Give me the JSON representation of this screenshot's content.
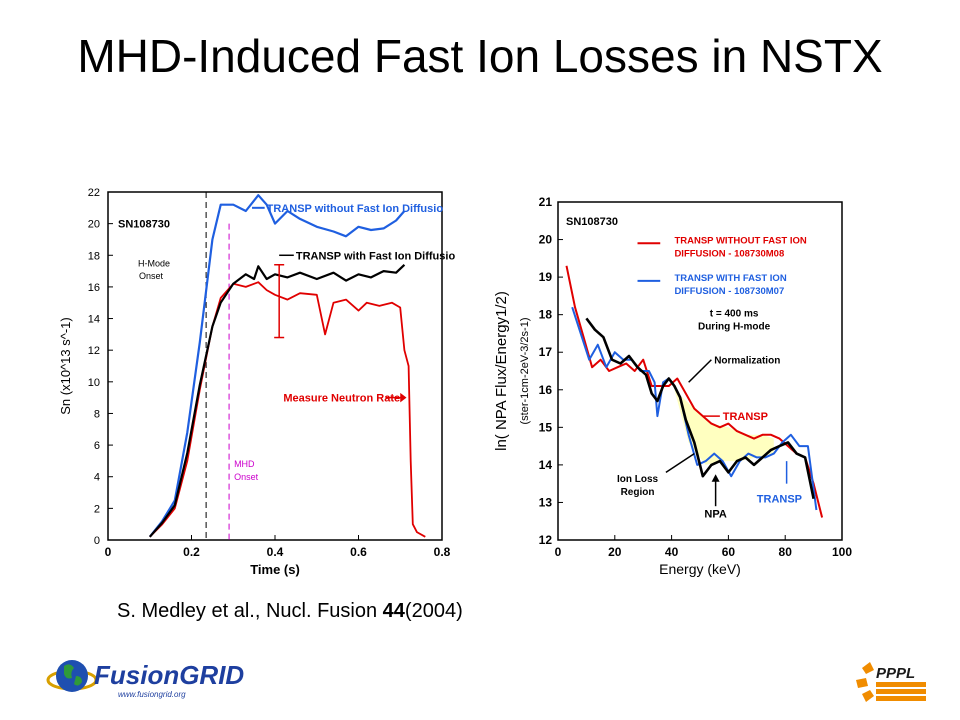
{
  "slide": {
    "title": "MHD-Induced Fast Ion Losses in NSTX",
    "citation": {
      "prefix": "S. Medley et al., Nucl. Fusion ",
      "volume": "44",
      "suffix": "(2004)"
    }
  },
  "logos": {
    "fusiongrid": {
      "name": "FusionGRID",
      "url_text": "www.fusiongrid.org"
    },
    "pppl": {
      "name": "PPPL"
    }
  },
  "colors": {
    "black": "#000000",
    "blue": "#1f5fe0",
    "red": "#e00000",
    "magenta": "#cc00cc",
    "yellow": "#ffffc0"
  },
  "chart_data": [
    {
      "type": "line",
      "shot_label": "SN108730",
      "xlabel": "Time (s)",
      "ylabel": "Sn (x10^13 s^-1)",
      "xlim": [
        0,
        0.8
      ],
      "ylim": [
        0,
        22
      ],
      "xticks": [
        "0",
        "0.2",
        "0.4",
        "0.6",
        "0.8"
      ],
      "yticks": [
        "0",
        "2",
        "4",
        "6",
        "8",
        "10",
        "12",
        "14",
        "16",
        "18",
        "20",
        "22"
      ],
      "annotations": {
        "h_mode": [
          "H-Mode",
          "Onset"
        ],
        "mhd": [
          "MHD",
          "Onset"
        ],
        "h_mode_time": 0.235,
        "mhd_time": 0.29
      },
      "series": [
        {
          "name": "TRANSP without Fast Ion Diffusio",
          "color": "blue",
          "x": [
            0.1,
            0.13,
            0.16,
            0.19,
            0.22,
            0.25,
            0.27,
            0.3,
            0.33,
            0.36,
            0.38,
            0.4,
            0.43,
            0.46,
            0.5,
            0.54,
            0.57,
            0.6,
            0.63,
            0.66,
            0.69,
            0.71
          ],
          "y": [
            0.2,
            1.2,
            2.5,
            6.8,
            12.5,
            19.0,
            21.2,
            21.2,
            20.8,
            21.8,
            21.2,
            20.0,
            20.8,
            20.3,
            19.8,
            19.5,
            19.2,
            19.8,
            19.6,
            19.7,
            20.2,
            20.8
          ]
        },
        {
          "name": "TRANSP with Fast Ion Diffusio",
          "color": "black",
          "x": [
            0.1,
            0.13,
            0.16,
            0.19,
            0.22,
            0.25,
            0.27,
            0.3,
            0.33,
            0.35,
            0.36,
            0.38,
            0.4,
            0.43,
            0.46,
            0.5,
            0.54,
            0.57,
            0.6,
            0.63,
            0.66,
            0.69,
            0.71
          ],
          "y": [
            0.2,
            1.1,
            2.2,
            5.5,
            9.8,
            13.5,
            15.0,
            16.2,
            16.8,
            16.5,
            17.3,
            16.5,
            16.8,
            16.6,
            16.9,
            16.5,
            16.9,
            16.4,
            16.8,
            16.6,
            17.0,
            16.9,
            17.4
          ]
        },
        {
          "name": "Measure Neutron Rate",
          "color": "red",
          "x": [
            0.1,
            0.13,
            0.16,
            0.19,
            0.22,
            0.25,
            0.27,
            0.3,
            0.33,
            0.36,
            0.38,
            0.4,
            0.43,
            0.46,
            0.5,
            0.52,
            0.54,
            0.57,
            0.6,
            0.62,
            0.65,
            0.68,
            0.7,
            0.71,
            0.72,
            0.725,
            0.73,
            0.74,
            0.76
          ],
          "y": [
            0.2,
            1.0,
            2.0,
            5.0,
            9.5,
            13.5,
            15.3,
            16.2,
            16.0,
            16.3,
            15.8,
            15.5,
            15.2,
            15.6,
            15.5,
            13.0,
            15.0,
            15.2,
            14.5,
            15.0,
            14.8,
            15.0,
            14.7,
            12.0,
            11.0,
            5.0,
            1.0,
            0.5,
            0.2
          ]
        }
      ]
    },
    {
      "type": "line",
      "shot_label": "SN108730",
      "xlabel": "Energy (keV)",
      "ylabel": "ln( NPA Flux/Energy1/2)",
      "ylabel_units": "(ster-1cm-2eV-3/2s-1)",
      "xlim": [
        0,
        100
      ],
      "ylim": [
        12,
        21
      ],
      "xticks": [
        "0",
        "20",
        "40",
        "60",
        "80",
        "100"
      ],
      "yticks": [
        "12",
        "13",
        "14",
        "15",
        "16",
        "17",
        "18",
        "19",
        "20",
        "21"
      ],
      "annotations": {
        "time": [
          "t = 400 ms",
          "During H-mode"
        ],
        "normalization": "Normalization",
        "transp_red": "TRANSP",
        "transp_blue": "TRANSP",
        "ion_loss": [
          "Ion Loss",
          "Region"
        ],
        "npa": "NPA"
      },
      "series": [
        {
          "name": "TRANSP WITHOUT FAST ION DIFFUSION - 108730M08",
          "color": "red",
          "x": [
            3,
            6,
            9,
            12,
            15,
            18,
            21,
            24,
            27,
            30,
            33,
            36,
            39,
            42,
            45,
            48,
            51,
            54,
            57,
            60,
            63,
            66,
            69,
            72,
            75,
            78,
            81,
            84,
            87,
            90,
            93
          ],
          "y": [
            19.3,
            18.2,
            17.4,
            16.6,
            16.8,
            16.5,
            16.6,
            16.7,
            16.5,
            16.8,
            16.1,
            16.1,
            16.1,
            16.3,
            15.9,
            15.5,
            15.3,
            15.1,
            15.0,
            15.1,
            14.9,
            14.8,
            14.7,
            14.8,
            14.8,
            14.7,
            14.5,
            14.3,
            14.2,
            13.5,
            12.6
          ]
        },
        {
          "name": "TRANSP WITH FAST ION DIFFUSION - 108730M07",
          "color": "blue",
          "x": [
            5,
            8,
            11,
            14,
            17,
            20,
            23,
            26,
            29,
            32,
            34,
            35,
            37,
            39,
            41,
            43,
            46,
            49,
            52,
            55,
            58,
            61,
            64,
            67,
            70,
            73,
            76,
            79,
            82,
            85,
            88,
            91
          ],
          "y": [
            18.2,
            17.5,
            16.8,
            17.2,
            16.6,
            17.0,
            16.8,
            16.8,
            16.5,
            16.5,
            16.2,
            15.3,
            16.2,
            16.3,
            16.1,
            15.8,
            14.8,
            14.0,
            14.1,
            14.3,
            14.1,
            13.7,
            14.1,
            14.3,
            14.2,
            14.2,
            14.3,
            14.6,
            14.8,
            14.5,
            14.5,
            12.8
          ]
        },
        {
          "name": "NPA",
          "color": "black",
          "x": [
            10,
            13,
            16,
            19,
            22,
            25,
            28,
            31,
            33,
            35,
            37,
            39,
            41,
            43,
            45,
            48,
            51,
            54,
            57,
            60,
            63,
            66,
            69,
            72,
            75,
            78,
            81,
            84,
            87,
            90
          ],
          "y": [
            17.9,
            17.6,
            17.4,
            16.8,
            16.7,
            16.9,
            16.6,
            16.4,
            15.9,
            15.7,
            16.1,
            16.3,
            16.1,
            15.8,
            15.2,
            14.6,
            13.7,
            14.0,
            14.1,
            13.8,
            14.1,
            14.2,
            14.0,
            14.2,
            14.4,
            14.5,
            14.6,
            14.3,
            14.2,
            13.1
          ]
        }
      ]
    }
  ]
}
